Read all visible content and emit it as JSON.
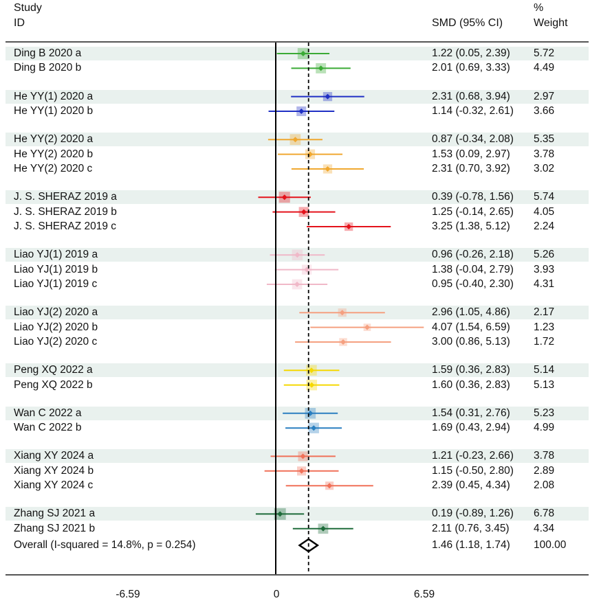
{
  "header": {
    "study_line1": "Study",
    "study_line2": "ID",
    "ci_header": "SMD (95% CI)",
    "weight_line1": "%",
    "weight_line2": "Weight"
  },
  "x_ticks": [
    "-6.59",
    "0",
    "6.59"
  ],
  "colors": {
    "green": "#3aaa35",
    "blue": "#1f2fc4",
    "orange": "#f0a830",
    "red": "#e4121b",
    "pink": "#f0b8c8",
    "salmon": "#f5a080",
    "yellow": "#f5d800",
    "steelblue": "#2a7fc0",
    "coral": "#f07058",
    "darkgreen": "#1e6b3a",
    "band": "#e9f1ee"
  },
  "chart_data": {
    "type": "forest",
    "xlabel": "",
    "ylabel": "",
    "x_ticks": [
      -6.59,
      0,
      6.59
    ],
    "null_line": 0,
    "overall_line": 1.46,
    "groups": [
      {
        "color": "green",
        "studies": [
          {
            "label": "Ding B 2020 a",
            "smd": 1.22,
            "lo": 0.05,
            "hi": 2.39,
            "ci_text": "1.22 (0.05, 2.39)",
            "weight": "5.72"
          },
          {
            "label": "Ding B 2020 b",
            "smd": 2.01,
            "lo": 0.69,
            "hi": 3.33,
            "ci_text": "2.01 (0.69, 3.33)",
            "weight": "4.49"
          }
        ]
      },
      {
        "color": "blue",
        "studies": [
          {
            "label": "He YY(1) 2020 a",
            "smd": 2.31,
            "lo": 0.68,
            "hi": 3.94,
            "ci_text": "2.31 (0.68, 3.94)",
            "weight": "2.97"
          },
          {
            "label": "He YY(1) 2020 b",
            "smd": 1.14,
            "lo": -0.32,
            "hi": 2.61,
            "ci_text": "1.14 (-0.32, 2.61)",
            "weight": "3.66"
          }
        ]
      },
      {
        "color": "orange",
        "studies": [
          {
            "label": "He YY(2) 2020 a",
            "smd": 0.87,
            "lo": -0.34,
            "hi": 2.08,
            "ci_text": "0.87 (-0.34, 2.08)",
            "weight": "5.35"
          },
          {
            "label": "He YY(2) 2020 b",
            "smd": 1.53,
            "lo": 0.09,
            "hi": 2.97,
            "ci_text": "1.53 (0.09, 2.97)",
            "weight": "3.78"
          },
          {
            "label": "He YY(2) 2020 c",
            "smd": 2.31,
            "lo": 0.7,
            "hi": 3.92,
            "ci_text": "2.31 (0.70, 3.92)",
            "weight": "3.02"
          }
        ]
      },
      {
        "color": "red",
        "studies": [
          {
            "label": "J. S. SHERAZ 2019 a",
            "smd": 0.39,
            "lo": -0.78,
            "hi": 1.56,
            "ci_text": "0.39 (-0.78, 1.56)",
            "weight": "5.74"
          },
          {
            "label": "J. S. SHERAZ 2019 b",
            "smd": 1.25,
            "lo": -0.14,
            "hi": 2.65,
            "ci_text": "1.25 (-0.14, 2.65)",
            "weight": "4.05"
          },
          {
            "label": "J. S. SHERAZ 2019 c",
            "smd": 3.25,
            "lo": 1.38,
            "hi": 5.12,
            "ci_text": "3.25 (1.38, 5.12)",
            "weight": "2.24"
          }
        ]
      },
      {
        "color": "pink",
        "studies": [
          {
            "label": "Liao YJ(1) 2019 a",
            "smd": 0.96,
            "lo": -0.26,
            "hi": 2.18,
            "ci_text": "0.96 (-0.26, 2.18)",
            "weight": "5.26"
          },
          {
            "label": "Liao YJ(1) 2019 b",
            "smd": 1.38,
            "lo": -0.04,
            "hi": 2.79,
            "ci_text": "1.38 (-0.04, 2.79)",
            "weight": "3.93"
          },
          {
            "label": "Liao YJ(1) 2019 c",
            "smd": 0.95,
            "lo": -0.4,
            "hi": 2.3,
            "ci_text": "0.95 (-0.40, 2.30)",
            "weight": "4.31"
          }
        ]
      },
      {
        "color": "salmon",
        "studies": [
          {
            "label": "Liao YJ(2) 2020 a",
            "smd": 2.96,
            "lo": 1.05,
            "hi": 4.86,
            "ci_text": "2.96 (1.05, 4.86)",
            "weight": "2.17"
          },
          {
            "label": "Liao YJ(2) 2020 b",
            "smd": 4.07,
            "lo": 1.54,
            "hi": 6.59,
            "ci_text": "4.07 (1.54, 6.59)",
            "weight": "1.23"
          },
          {
            "label": "Liao YJ(2) 2020 c",
            "smd": 3.0,
            "lo": 0.86,
            "hi": 5.13,
            "ci_text": "3.00 (0.86, 5.13)",
            "weight": "1.72"
          }
        ]
      },
      {
        "color": "yellow",
        "studies": [
          {
            "label": "Peng XQ 2022 a",
            "smd": 1.59,
            "lo": 0.36,
            "hi": 2.83,
            "ci_text": "1.59 (0.36, 2.83)",
            "weight": "5.14"
          },
          {
            "label": "Peng XQ 2022 b",
            "smd": 1.6,
            "lo": 0.36,
            "hi": 2.83,
            "ci_text": "1.60 (0.36, 2.83)",
            "weight": "5.13"
          }
        ]
      },
      {
        "color": "steelblue",
        "studies": [
          {
            "label": "Wan C 2022 a",
            "smd": 1.54,
            "lo": 0.31,
            "hi": 2.76,
            "ci_text": "1.54 (0.31, 2.76)",
            "weight": "5.23"
          },
          {
            "label": "Wan C 2022 b",
            "smd": 1.69,
            "lo": 0.43,
            "hi": 2.94,
            "ci_text": "1.69 (0.43, 2.94)",
            "weight": "4.99"
          }
        ]
      },
      {
        "color": "coral",
        "studies": [
          {
            "label": "Xiang XY 2024 a",
            "smd": 1.21,
            "lo": -0.23,
            "hi": 2.66,
            "ci_text": "1.21 (-0.23, 2.66)",
            "weight": "3.78"
          },
          {
            "label": "Xiang XY 2024 b",
            "smd": 1.15,
            "lo": -0.5,
            "hi": 2.8,
            "ci_text": "1.15 (-0.50, 2.80)",
            "weight": "2.89"
          },
          {
            "label": "Xiang XY 2024 c",
            "smd": 2.39,
            "lo": 0.45,
            "hi": 4.34,
            "ci_text": "2.39 (0.45, 4.34)",
            "weight": "2.08"
          }
        ]
      },
      {
        "color": "darkgreen",
        "studies": [
          {
            "label": "Zhang SJ 2021 a",
            "smd": 0.19,
            "lo": -0.89,
            "hi": 1.26,
            "ci_text": "0.19 (-0.89, 1.26)",
            "weight": "6.78"
          },
          {
            "label": "Zhang SJ 2021 b",
            "smd": 2.11,
            "lo": 0.76,
            "hi": 3.45,
            "ci_text": "2.11 (0.76, 3.45)",
            "weight": "4.34"
          }
        ]
      }
    ],
    "overall": {
      "label": "Overall  (I-squared = 14.8%, p = 0.254)",
      "smd": 1.46,
      "lo": 1.18,
      "hi": 1.74,
      "ci_text": "1.46 (1.18, 1.74)",
      "weight": "100.00"
    }
  }
}
